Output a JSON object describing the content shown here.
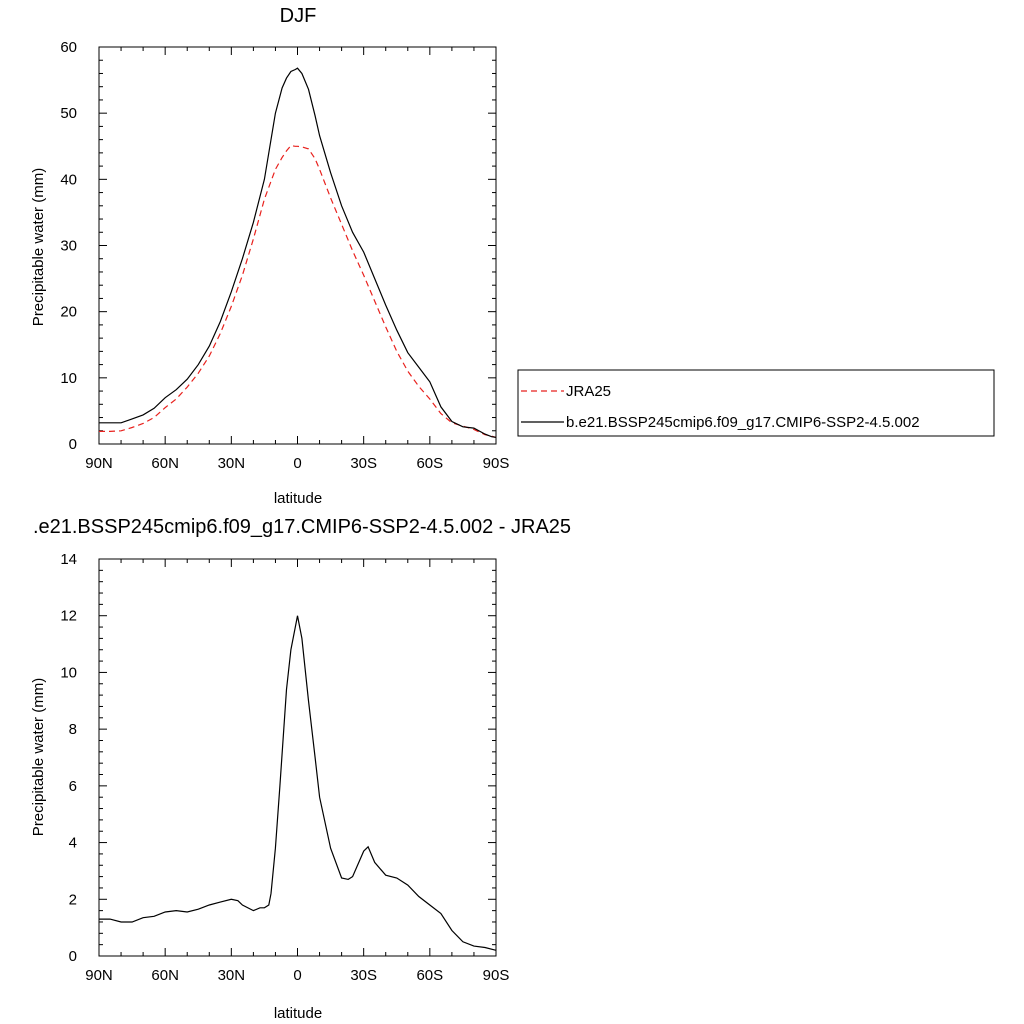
{
  "chart_data": [
    {
      "type": "line",
      "title": "DJF",
      "xlabel": "latitude",
      "ylabel": "Precipitable water (mm)",
      "xlim": [
        -90,
        90
      ],
      "ylim": [
        0,
        60
      ],
      "x_ticks": [
        -90,
        -60,
        -30,
        0,
        30,
        60,
        90
      ],
      "x_tick_labels": [
        "90N",
        "60N",
        "30N",
        "0",
        "30S",
        "60S",
        "90S"
      ],
      "y_ticks": [
        0,
        10,
        20,
        30,
        40,
        50,
        60
      ],
      "y_tick_labels": [
        "0",
        "10",
        "20",
        "30",
        "40",
        "50",
        "60"
      ],
      "legend": {
        "placement": "right",
        "entries": [
          "JRA25",
          "b.e21.BSSP245cmip6.f09_g17.CMIP6-SSP2-4.5.002"
        ]
      },
      "series": [
        {
          "name": "JRA25",
          "color": "#e8211d",
          "dash": "dashed",
          "x": [
            -90,
            -85,
            -80,
            -75,
            -70,
            -65,
            -60,
            -55,
            -50,
            -45,
            -40,
            -35,
            -30,
            -25,
            -20,
            -15,
            -10,
            -7,
            -5,
            -3,
            -1,
            0,
            2,
            5,
            8,
            10,
            15,
            20,
            25,
            30,
            35,
            40,
            45,
            50,
            55,
            60,
            65,
            70,
            75,
            80,
            85,
            88,
            90
          ],
          "y": [
            1.9,
            1.9,
            2.0,
            2.5,
            3.1,
            4.0,
            5.5,
            6.8,
            8.6,
            10.7,
            13.3,
            16.7,
            20.8,
            25.5,
            31.0,
            37.0,
            41.5,
            43.3,
            44.3,
            45.1,
            45.0,
            45.0,
            44.9,
            44.6,
            43.1,
            41.5,
            37.2,
            33.2,
            29.2,
            25.5,
            21.6,
            17.7,
            14.0,
            11.0,
            8.7,
            6.8,
            4.6,
            3.2,
            2.7,
            2.2,
            1.4,
            1.2,
            1.0
          ]
        },
        {
          "name": "b.e21.BSSP245cmip6.f09_g17.CMIP6-SSP2-4.5.002",
          "color": "#000000",
          "dash": "solid",
          "x": [
            -90,
            -85,
            -80,
            -75,
            -70,
            -65,
            -60,
            -55,
            -50,
            -45,
            -40,
            -35,
            -30,
            -25,
            -20,
            -15,
            -10,
            -7,
            -5,
            -3,
            -1,
            0,
            2,
            5,
            8,
            10,
            15,
            20,
            25,
            30,
            35,
            40,
            45,
            50,
            55,
            60,
            65,
            70,
            75,
            80,
            85,
            88,
            90
          ],
          "y": [
            3.2,
            3.2,
            3.2,
            3.8,
            4.4,
            5.4,
            7.0,
            8.2,
            9.8,
            12.0,
            14.8,
            18.5,
            23.0,
            28.0,
            33.5,
            40.0,
            50.0,
            53.8,
            55.3,
            56.3,
            56.6,
            56.8,
            56.0,
            53.6,
            49.6,
            46.6,
            41.0,
            36.0,
            32.0,
            29.0,
            25.0,
            21.0,
            17.2,
            13.8,
            11.6,
            9.4,
            5.6,
            3.4,
            2.6,
            2.4,
            1.5,
            1.1,
            1.0
          ]
        }
      ]
    },
    {
      "type": "line",
      "title": ".e21.BSSP245cmip6.f09_g17.CMIP6-SSP2-4.5.002 - JRA25",
      "xlabel": "latitude",
      "ylabel": "Precipitable water (mm)",
      "xlim": [
        -90,
        90
      ],
      "ylim": [
        0,
        14
      ],
      "x_ticks": [
        -90,
        -60,
        -30,
        0,
        30,
        60,
        90
      ],
      "x_tick_labels": [
        "90N",
        "60N",
        "30N",
        "0",
        "30S",
        "60S",
        "90S"
      ],
      "y_ticks": [
        0,
        2,
        4,
        6,
        8,
        10,
        12,
        14
      ],
      "y_tick_labels": [
        "0",
        "2",
        "4",
        "6",
        "8",
        "10",
        "12",
        "14"
      ],
      "series": [
        {
          "color": "#000000",
          "dash": "solid",
          "x": [
            -90,
            -85,
            -80,
            -75,
            -70,
            -65,
            -60,
            -55,
            -50,
            -45,
            -40,
            -35,
            -30,
            -27,
            -25,
            -20,
            -17,
            -15,
            -13,
            -12,
            -10,
            -8,
            -5,
            -3,
            -1,
            0,
            2,
            5,
            8,
            10,
            15,
            20,
            23,
            25,
            30,
            32,
            35,
            40,
            45,
            50,
            55,
            60,
            65,
            70,
            75,
            80,
            85,
            90
          ],
          "y": [
            1.3,
            1.3,
            1.2,
            1.2,
            1.35,
            1.4,
            1.55,
            1.6,
            1.55,
            1.65,
            1.8,
            1.9,
            2.0,
            1.95,
            1.8,
            1.6,
            1.7,
            1.7,
            1.8,
            2.2,
            3.8,
            6.0,
            9.4,
            10.8,
            11.6,
            12.0,
            11.2,
            9.0,
            7.0,
            5.6,
            3.8,
            2.75,
            2.7,
            2.8,
            3.7,
            3.85,
            3.3,
            2.85,
            2.75,
            2.5,
            2.1,
            1.8,
            1.5,
            0.9,
            0.5,
            0.35,
            0.3,
            0.2
          ]
        }
      ]
    }
  ]
}
